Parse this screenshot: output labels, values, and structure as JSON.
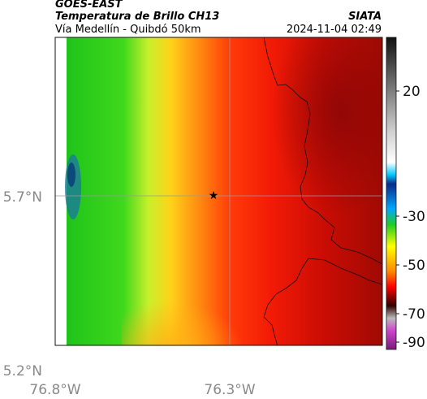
{
  "header": {
    "satellite": "GOES-EAST",
    "product": "Temperatura de Brillo CH13",
    "region": "Vía Medellín - Quibdó 50km",
    "agency": "SIATA",
    "datetime": "2024-11-04 02:49"
  },
  "chart_data": {
    "type": "heatmap",
    "title": "Temperatura de Brillo CH13",
    "x_ticks": [
      -76.8,
      -76.3
    ],
    "x_tick_labels": [
      "76.8°W",
      "76.3°W"
    ],
    "y_ticks": [
      5.7,
      5.2
    ],
    "y_tick_labels": [
      "5.7°N",
      "5.2°N"
    ],
    "xlim": [
      -76.8,
      -76.2
    ],
    "ylim": [
      5.2,
      5.8
    ],
    "grid": true,
    "marker": {
      "lon": -76.38,
      "lat": 5.7,
      "symbol": "star"
    },
    "colorbar": {
      "range": [
        -95,
        35
      ],
      "ticks": [
        20,
        -30,
        -50,
        -70,
        -90
      ],
      "tick_labels": [
        "20",
        "-30",
        "-50",
        "-70",
        "-90"
      ]
    },
    "field_summary": {
      "west_min_deg_c": -30,
      "center_deg_c": -55,
      "east_max_deg_c": -75
    }
  }
}
